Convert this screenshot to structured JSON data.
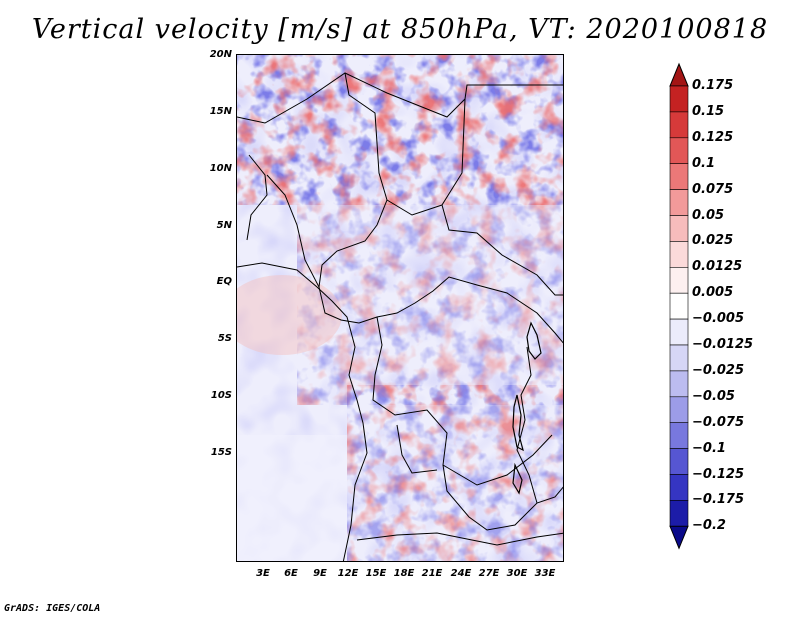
{
  "title": "Vertical velocity [m/s] at 850hPa, VT: 2020100818",
  "credit": "GrADS: IGES/COLA",
  "lat_ticks": [
    "20N",
    "15N",
    "10N",
    "5N",
    "EQ",
    "5S",
    "10S",
    "15S"
  ],
  "lon_ticks": [
    "3E",
    "6E",
    "9E",
    "12E",
    "15E",
    "18E",
    "21E",
    "24E",
    "27E",
    "30E",
    "33E"
  ],
  "colorbar": {
    "labels": [
      "0.175",
      "0.15",
      "0.125",
      "0.1",
      "0.075",
      "0.05",
      "0.025",
      "0.0125",
      "0.005",
      "−0.005",
      "−0.0125",
      "−0.025",
      "−0.05",
      "−0.075",
      "−0.1",
      "−0.125",
      "−0.175",
      "−0.2"
    ],
    "colors": [
      "#a31515",
      "#c42222",
      "#d63a3a",
      "#e25757",
      "#ec7878",
      "#f29a9a",
      "#f7bcbc",
      "#fbdada",
      "#fdf0f0",
      "#ffffff",
      "#ececfb",
      "#d6d6f6",
      "#bcbcf0",
      "#9c9ce8",
      "#7878de",
      "#5656d2",
      "#3535c2",
      "#1c1ca8",
      "#0a0a8a"
    ]
  }
}
